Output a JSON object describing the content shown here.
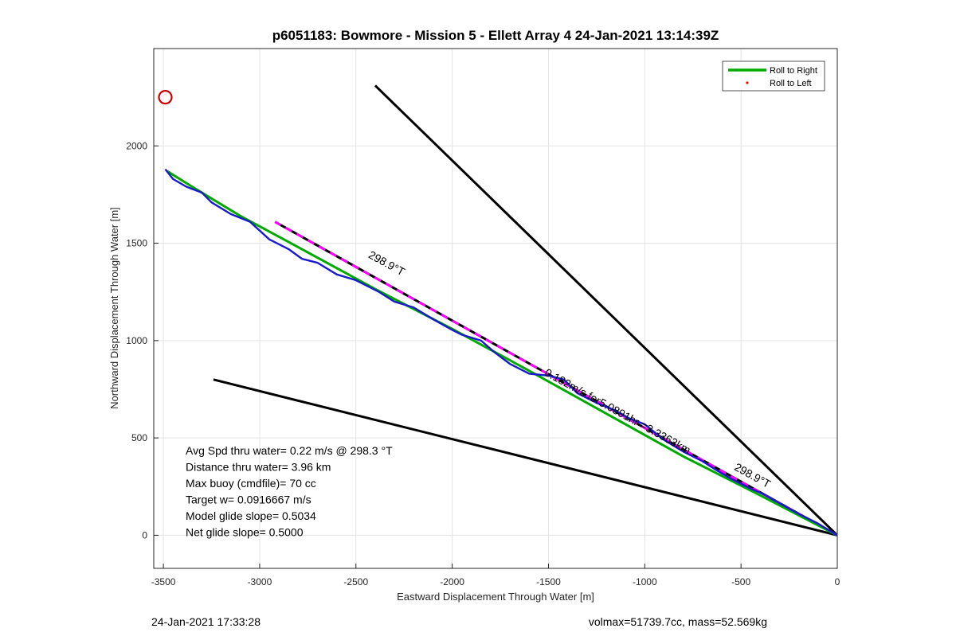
{
  "chart_data": {
    "type": "line",
    "title": "p6051183: Bowmore - Mission 5 - Ellett Array 4 24-Jan-2021 13:14:39Z",
    "xlabel": "Eastward Displacement Through Water [m]",
    "ylabel": "Northward Displacement Through Water [m]",
    "xlim": [
      -3550,
      0
    ],
    "ylim": [
      -170,
      2500
    ],
    "xticks": [
      -3500,
      -3000,
      -2500,
      -2000,
      -1500,
      -1000,
      -500,
      0
    ],
    "yticks": [
      0,
      500,
      1000,
      1500,
      2000
    ],
    "grid": true,
    "legend_position": "top-right",
    "legend": [
      {
        "label": "Roll to Right",
        "color": "#00aa00",
        "style": "line"
      },
      {
        "label": "Roll to Left",
        "color": "#ff0000",
        "style": "dot"
      }
    ],
    "series": [
      {
        "name": "Roll to Right",
        "color": "#00aa00",
        "x": [
          0,
          -400,
          -800,
          -1200,
          -1600,
          -2000,
          -2400,
          -2800,
          -3100,
          -3350,
          -3480
        ],
        "y": [
          0,
          205,
          405,
          625,
          845,
          1060,
          1265,
          1480,
          1640,
          1790,
          1870
        ]
      },
      {
        "name": "track",
        "color": "#1a1acc",
        "x": [
          0,
          -100,
          -200,
          -300,
          -380,
          -450,
          -550,
          -620,
          -700,
          -800,
          -900,
          -1000,
          -1080,
          -1150,
          -1250,
          -1350,
          -1420,
          -1500,
          -1600,
          -1700,
          -1780,
          -1850,
          -1950,
          -2000,
          -2100,
          -2200,
          -2300,
          -2380,
          -2500,
          -2600,
          -2700,
          -2780,
          -2850,
          -2950,
          -3050,
          -3150,
          -3250,
          -3300,
          -3380,
          -3450,
          -3490
        ],
        "y": [
          0,
          60,
          110,
          165,
          210,
          240,
          290,
          330,
          380,
          430,
          490,
          570,
          600,
          640,
          680,
          730,
          800,
          820,
          830,
          880,
          940,
          1000,
          1030,
          1055,
          1110,
          1170,
          1200,
          1250,
          1310,
          1340,
          1400,
          1420,
          1470,
          1520,
          1610,
          1650,
          1710,
          1760,
          1790,
          1830,
          1880
        ]
      }
    ],
    "reference_lines": [
      {
        "name": "heading-line-upper",
        "color": "#000000",
        "x": [
          0,
          -2400
        ],
        "y": [
          0,
          2310
        ]
      },
      {
        "name": "heading-line-lower",
        "color": "#000000",
        "x": [
          0,
          -3240
        ],
        "y": [
          0,
          800
        ]
      },
      {
        "name": "dashed-heading-line",
        "color": "#ff00ff",
        "x": [
          0,
          -2920
        ],
        "y": [
          0,
          1610
        ]
      }
    ],
    "markers": [
      {
        "name": "target-circle",
        "color": "#cc0000",
        "x": [
          -3490
        ],
        "y": [
          2250
        ]
      }
    ],
    "annotations": [
      {
        "text": "298.9°T",
        "x": -2350,
        "y": 1380,
        "rotate": 28.9
      },
      {
        "text": "0.182m/s for5.0891hr =3.3363km",
        "x": -1150,
        "y": 620,
        "rotate": 28.9
      },
      {
        "text": "298.9°T",
        "x": -450,
        "y": 290,
        "rotate": 28.9
      }
    ],
    "stats": [
      "Avg Spd thru water=  0.22 m/s @ 298.3 °T",
      "Distance thru water=  3.96 km",
      "Max buoy (cmdfile)= 70 cc",
      "Target w= 0.0916667 m/s",
      "Model glide slope= 0.5034",
      "Net glide slope= 0.5000"
    ],
    "footer_left": "24-Jan-2021 17:33:28",
    "footer_right": "volmax=51739.7cc, mass=52.569kg"
  }
}
